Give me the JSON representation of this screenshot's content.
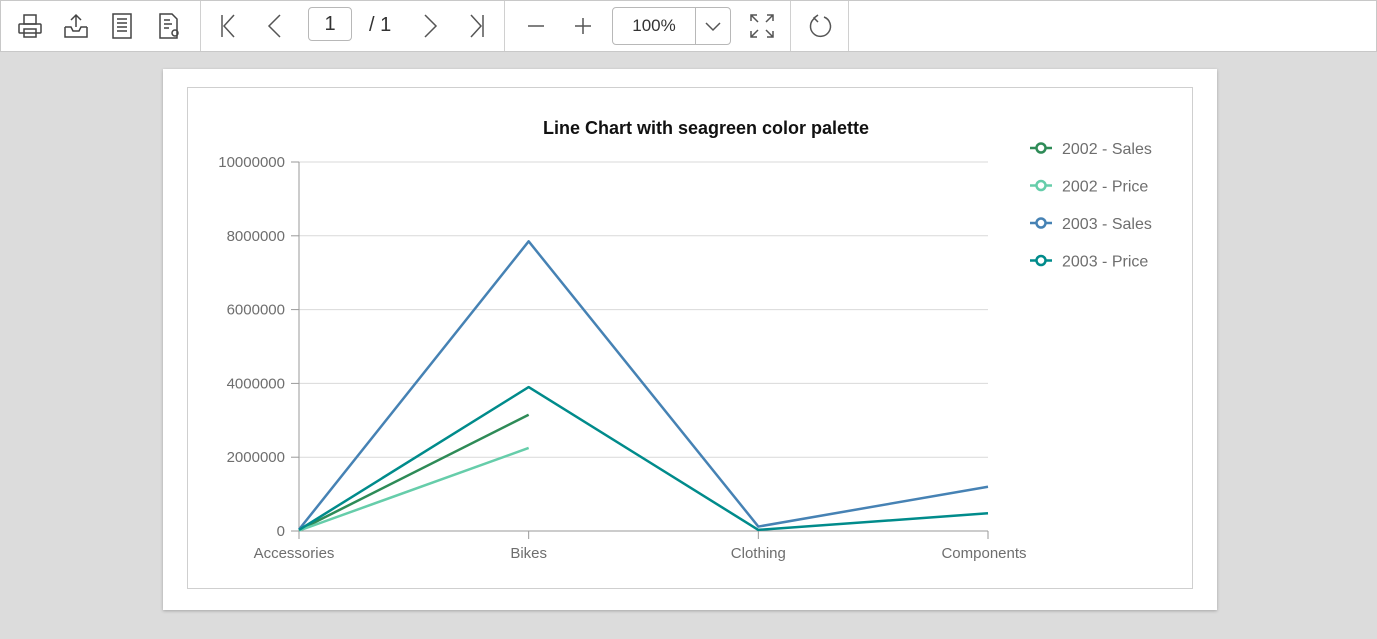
{
  "toolbar": {
    "page": {
      "current": "1",
      "total_label": "/ 1"
    },
    "zoom": {
      "value": "100%"
    },
    "icons": [
      "print-icon",
      "export-icon",
      "page-setup-icon",
      "print-layout-icon",
      "first-page-icon",
      "previous-page-icon",
      "next-page-icon",
      "last-page-icon",
      "zoom-out-icon",
      "zoom-in-icon",
      "chevron-down-icon",
      "fit-page-icon",
      "refresh-icon"
    ]
  },
  "colors": {
    "background": "#dcdcdc",
    "toolbar": "#ffffff",
    "icon": "#444444"
  },
  "chart_data": {
    "type": "line",
    "title": "Line Chart with seagreen color palette",
    "categories": [
      "Accessories",
      "Bikes",
      "Clothing",
      "Components"
    ],
    "ylim": [
      0,
      10000000
    ],
    "yticks": [
      "0",
      "2000000",
      "4000000",
      "6000000",
      "8000000",
      "10000000"
    ],
    "grid": true,
    "legend_position": "right",
    "series": [
      {
        "name": "2002 - Sales",
        "color": "#2e8b57",
        "values": [
          20000,
          3150000,
          null,
          null
        ]
      },
      {
        "name": "2002 - Price",
        "color": "#66cdaa",
        "values": [
          10000,
          2250000,
          null,
          null
        ]
      },
      {
        "name": "2003 - Sales",
        "color": "#4682b4",
        "values": [
          40000,
          7850000,
          120000,
          1200000
        ]
      },
      {
        "name": "2003 - Price",
        "color": "#008b8b",
        "values": [
          30000,
          3900000,
          30000,
          480000
        ]
      }
    ]
  }
}
